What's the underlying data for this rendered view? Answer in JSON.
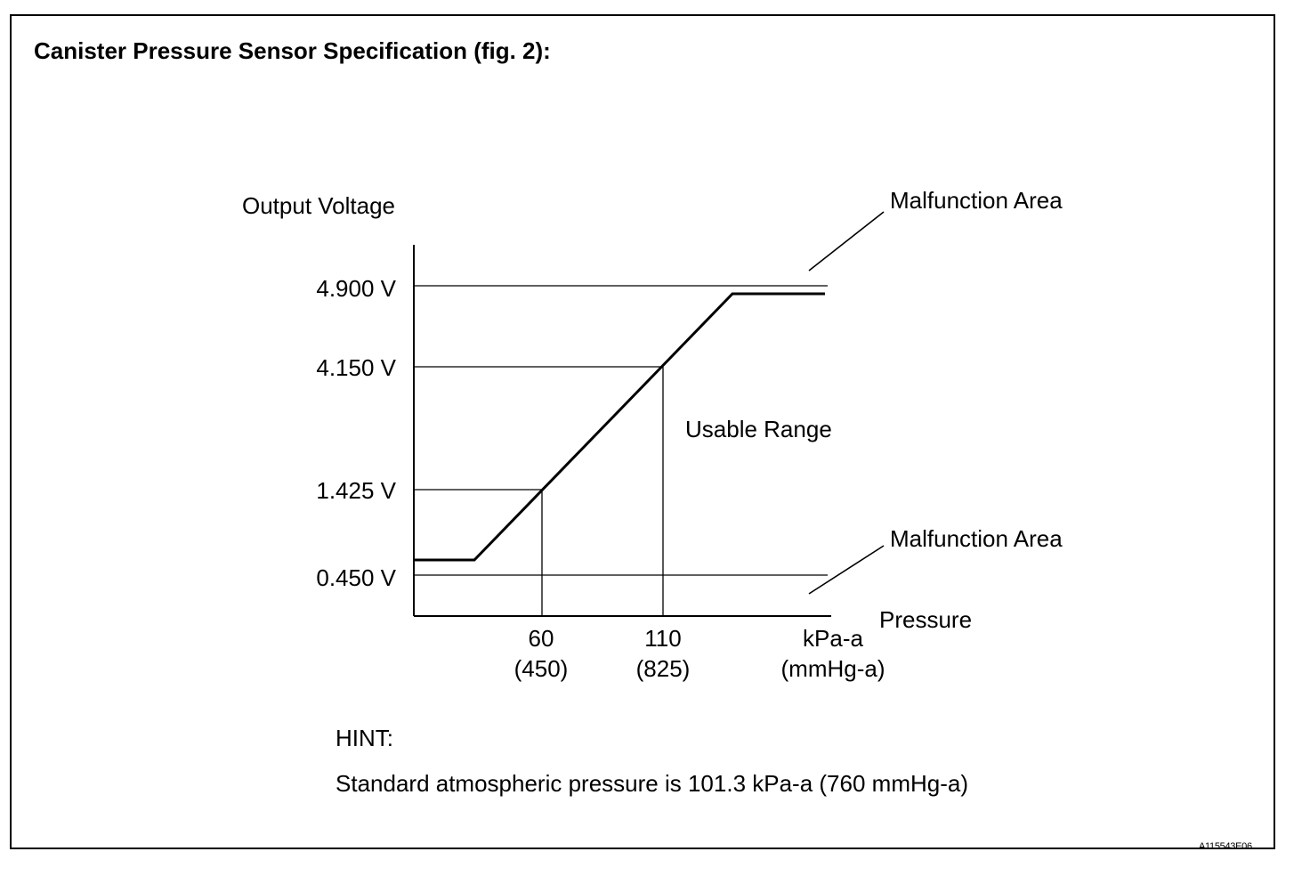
{
  "title": "Canister Pressure Sensor Specification (fig. 2):",
  "chart_data": {
    "type": "line",
    "ylabel": "Output Voltage",
    "xlabel": "Pressure",
    "x_unit": "kPa-a",
    "x_unit_alt": "(mmHg-a)",
    "y_ticks": [
      {
        "value": 4.9,
        "label": "4.900 V"
      },
      {
        "value": 4.15,
        "label": "4.150 V"
      },
      {
        "value": 1.425,
        "label": "1.425 V"
      },
      {
        "value": 0.45,
        "label": "0.450 V"
      }
    ],
    "x_ticks": [
      {
        "value": 60,
        "label": "60",
        "alt": "(450)"
      },
      {
        "value": 110,
        "label": "110",
        "alt": "(825)"
      }
    ],
    "annotations": {
      "malfunction_upper": "Malfunction Area",
      "malfunction_lower": "Malfunction Area",
      "usable": "Usable Range"
    }
  },
  "hint": {
    "heading": "HINT:",
    "text": "Standard atmospheric pressure is 101.3 kPa-a (760 mmHg-a)"
  },
  "figure_id": "A115543E06"
}
